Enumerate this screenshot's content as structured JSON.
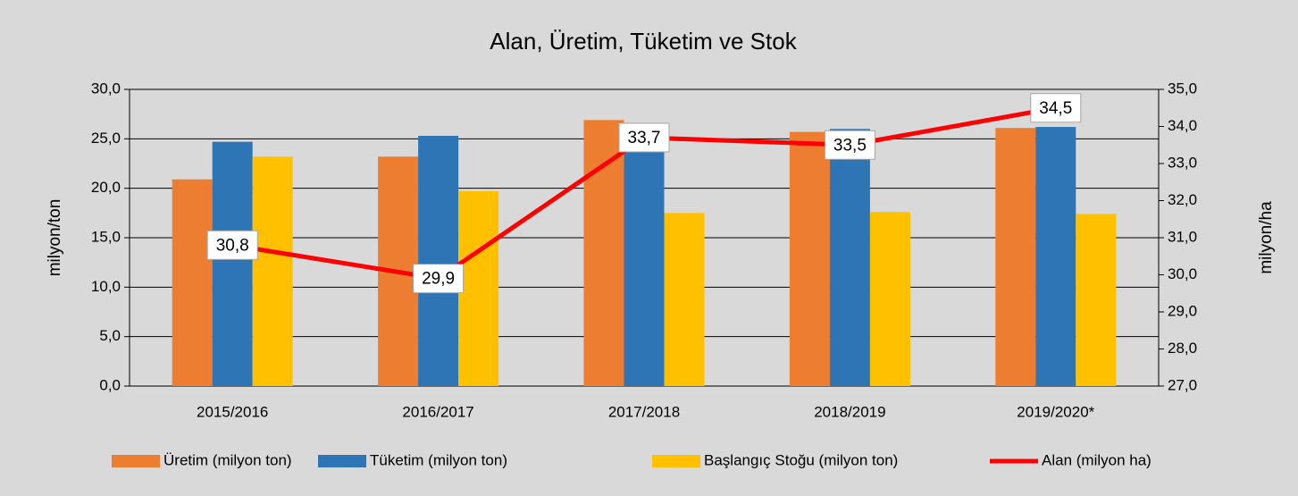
{
  "chart_data": {
    "type": "bar",
    "title": "Alan, Üretim, Tüketim ve Stok",
    "categories": [
      "2015/2016",
      "2016/2017",
      "2017/2018",
      "2018/2019",
      "2019/2020*"
    ],
    "ylabel": "milyon/ton",
    "y2label": "milyon/ha",
    "ylim": [
      0,
      30
    ],
    "yticks": [
      {
        "value": 0,
        "label": "0,0"
      },
      {
        "value": 5,
        "label": "5,0"
      },
      {
        "value": 10,
        "label": "10,0"
      },
      {
        "value": 15,
        "label": "15,0"
      },
      {
        "value": 20,
        "label": "20,0"
      },
      {
        "value": 25,
        "label": "25,0"
      },
      {
        "value": 30,
        "label": "30,0"
      }
    ],
    "y2lim": [
      27,
      35
    ],
    "y2ticks": [
      {
        "value": 27,
        "label": "27,0"
      },
      {
        "value": 28,
        "label": "28,0"
      },
      {
        "value": 29,
        "label": "29,0"
      },
      {
        "value": 30,
        "label": "30,0"
      },
      {
        "value": 31,
        "label": "31,0"
      },
      {
        "value": 32,
        "label": "32,0"
      },
      {
        "value": 33,
        "label": "33,0"
      },
      {
        "value": 34,
        "label": "34,0"
      },
      {
        "value": 35,
        "label": "35,0"
      }
    ],
    "grid": true,
    "legend": "bottom",
    "series": [
      {
        "name": "Üretim (milyon ton)",
        "color": "#ed7d31",
        "values": [
          20.9,
          23.2,
          26.9,
          25.7,
          26.1
        ]
      },
      {
        "name": "Tüketim (milyon ton)",
        "color": "#2e75b6",
        "values": [
          24.7,
          25.3,
          25.5,
          26.0,
          26.2
        ]
      },
      {
        "name": "Başlangıç Stoğu (milyon ton)",
        "color": "#ffc000",
        "values": [
          23.2,
          19.7,
          17.5,
          17.6,
          17.4
        ]
      },
      {
        "name": "Alan (milyon ha)",
        "color": "#ff0000",
        "type": "line",
        "axis": "y2",
        "values": [
          30.8,
          29.9,
          33.7,
          33.5,
          34.5
        ],
        "value_labels": [
          "30,8",
          "29,9",
          "33,7",
          "33,5",
          "34,5"
        ]
      }
    ]
  }
}
